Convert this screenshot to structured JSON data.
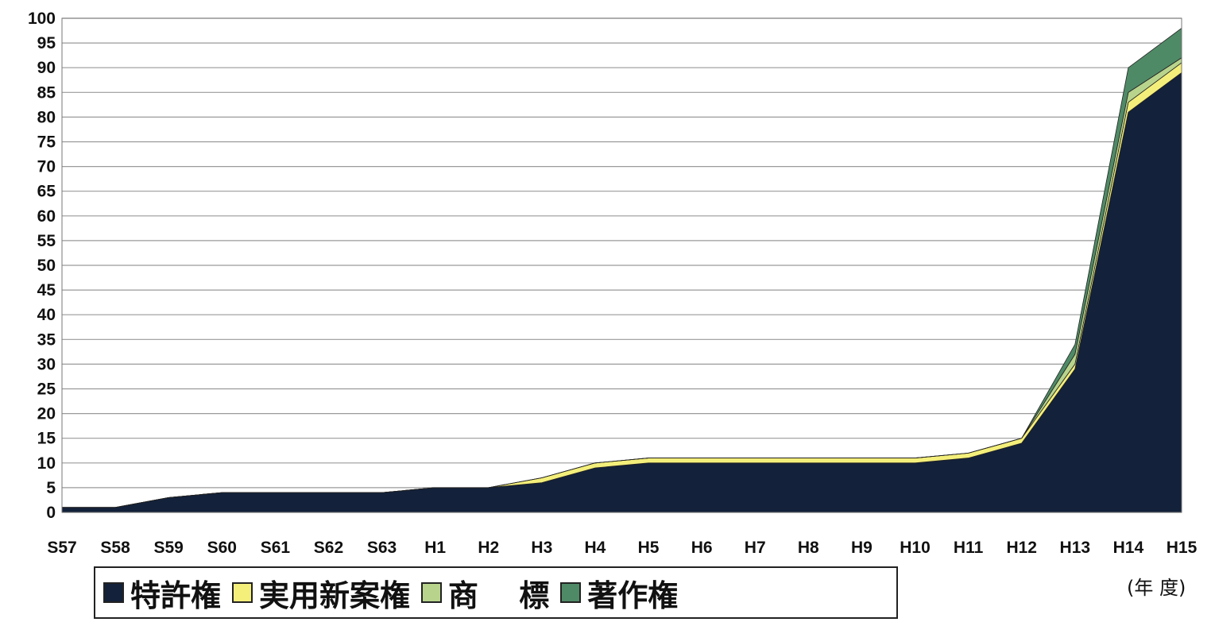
{
  "chart_data": {
    "type": "area",
    "stacked": true,
    "x_unit_label": "(年 度)",
    "categories": [
      "S57",
      "S58",
      "S59",
      "S60",
      "S61",
      "S62",
      "S63",
      "H1",
      "H2",
      "H3",
      "H4",
      "H5",
      "H6",
      "H7",
      "H8",
      "H9",
      "H10",
      "H11",
      "H12",
      "H13",
      "H14",
      "H15"
    ],
    "y_ticks": [
      0,
      5,
      10,
      15,
      20,
      25,
      30,
      35,
      40,
      45,
      50,
      55,
      60,
      65,
      70,
      75,
      80,
      85,
      90,
      95,
      100
    ],
    "ylim": [
      0,
      100
    ],
    "grid": true,
    "legend_position": "bottom-left",
    "series": [
      {
        "name": "特許権",
        "color": "#13213a",
        "values": [
          1,
          1,
          3,
          4,
          4,
          4,
          4,
          5,
          5,
          6,
          9,
          10,
          10,
          10,
          10,
          10,
          10,
          11,
          14,
          29,
          81,
          89
        ]
      },
      {
        "name": "実用新案権",
        "color": "#f4ef7a",
        "values": [
          0,
          0,
          0,
          0,
          0,
          0,
          0,
          0,
          0,
          1,
          1,
          1,
          1,
          1,
          1,
          1,
          1,
          1,
          1,
          1,
          2,
          2
        ]
      },
      {
        "name": "商　 標",
        "color": "#b8d48c",
        "values": [
          0,
          0,
          0,
          0,
          0,
          0,
          0,
          0,
          0,
          0,
          0,
          0,
          0,
          0,
          0,
          0,
          0,
          0,
          0,
          2,
          2,
          1
        ]
      },
      {
        "name": "著作権",
        "color": "#4f8a66",
        "values": [
          0,
          0,
          0,
          0,
          0,
          0,
          0,
          0,
          0,
          0,
          0,
          0,
          0,
          0,
          0,
          0,
          0,
          0,
          0,
          2,
          5,
          6
        ]
      }
    ]
  }
}
